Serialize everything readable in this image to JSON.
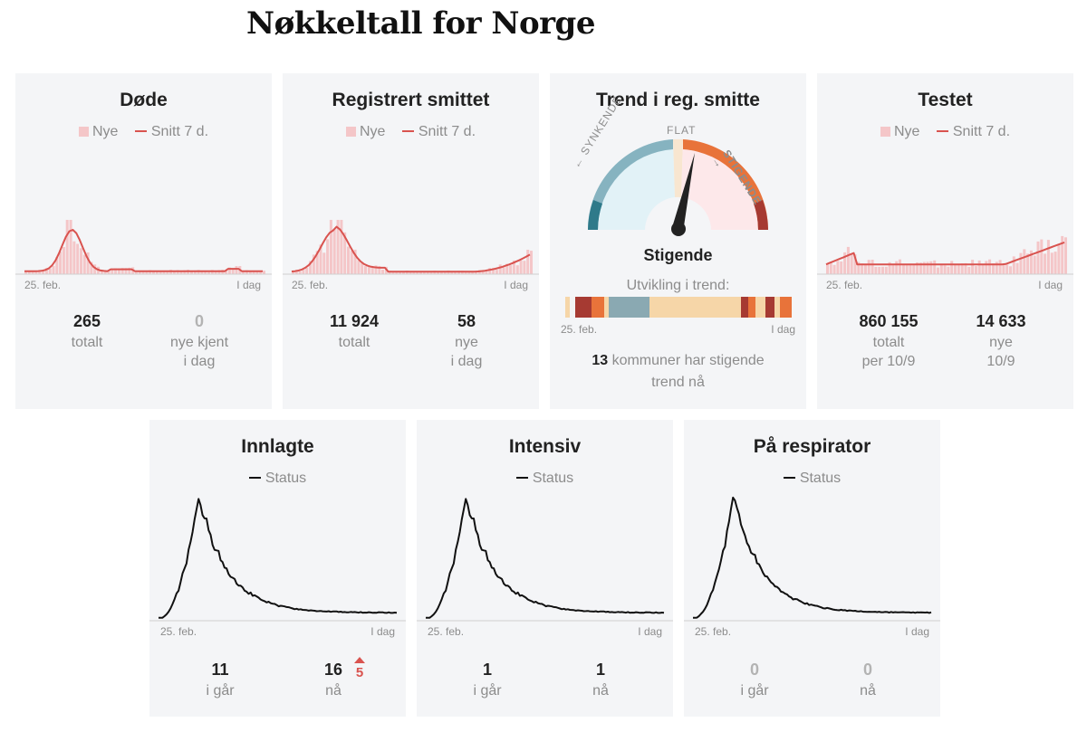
{
  "page": {
    "title": "Nøkkeltall for Norge"
  },
  "colors": {
    "bar": "#f4c6c8",
    "avg_line": "#d9534f",
    "status_line": "#111111",
    "muted": "#8c8c8c",
    "card_bg": "#f4f5f7"
  },
  "legend": {
    "new": "Nye",
    "avg": "Snitt 7 d.",
    "status": "Status"
  },
  "axis": {
    "start": "25. feb.",
    "end": "I dag"
  },
  "cards": {
    "dode": {
      "title": "Døde",
      "stat1": {
        "value": "265",
        "label": "totalt"
      },
      "stat2": {
        "value": "0",
        "label1": "nye kjent",
        "label2": "i dag"
      }
    },
    "smittet": {
      "title": "Registrert smittet",
      "stat1": {
        "value": "11 924",
        "label": "totalt"
      },
      "stat2": {
        "value": "58",
        "label1": "nye",
        "label2": "i dag"
      }
    },
    "trend": {
      "title": "Trend i reg. smitte",
      "gauge_left": "← SYNKENDE",
      "gauge_flat": "FLAT",
      "gauge_right": "STIGENDE →",
      "status": "Stigende",
      "dev_label": "Utvikling i trend:",
      "kommuner_count": "13",
      "kommuner_text1": " kommuner har stigende",
      "kommuner_text2": "trend nå",
      "trend_segments": [
        {
          "color": "#f6d6a8",
          "weight": 2
        },
        {
          "color": "#f3f3f3",
          "weight": 2
        },
        {
          "color": "#a63a32",
          "weight": 7
        },
        {
          "color": "#e8733a",
          "weight": 5
        },
        {
          "color": "#f6d6a8",
          "weight": 2
        },
        {
          "color": "#8aa9b2",
          "weight": 17
        },
        {
          "color": "#f6d6a8",
          "weight": 38
        },
        {
          "color": "#a63a32",
          "weight": 3
        },
        {
          "color": "#e8733a",
          "weight": 3
        },
        {
          "color": "#f6d6a8",
          "weight": 4
        },
        {
          "color": "#a63a32",
          "weight": 4
        },
        {
          "color": "#f6d6a8",
          "weight": 2
        },
        {
          "color": "#e8733a",
          "weight": 5
        }
      ]
    },
    "testet": {
      "title": "Testet",
      "stat1": {
        "value": "860 155",
        "label1": "totalt",
        "label2": "per 10/9"
      },
      "stat2": {
        "value": "14 633",
        "label1": "nye",
        "label2": "10/9"
      }
    },
    "innlagte": {
      "title": "Innlagte",
      "stat1": {
        "value": "11",
        "label": "i går"
      },
      "stat2": {
        "value": "16",
        "label": "nå"
      },
      "delta": "5"
    },
    "intensiv": {
      "title": "Intensiv",
      "stat1": {
        "value": "1",
        "label": "i går"
      },
      "stat2": {
        "value": "1",
        "label": "nå"
      }
    },
    "respirator": {
      "title": "På respirator",
      "stat1": {
        "value": "0",
        "label": "i går"
      },
      "stat2": {
        "value": "0",
        "label": "nå"
      }
    }
  }
}
